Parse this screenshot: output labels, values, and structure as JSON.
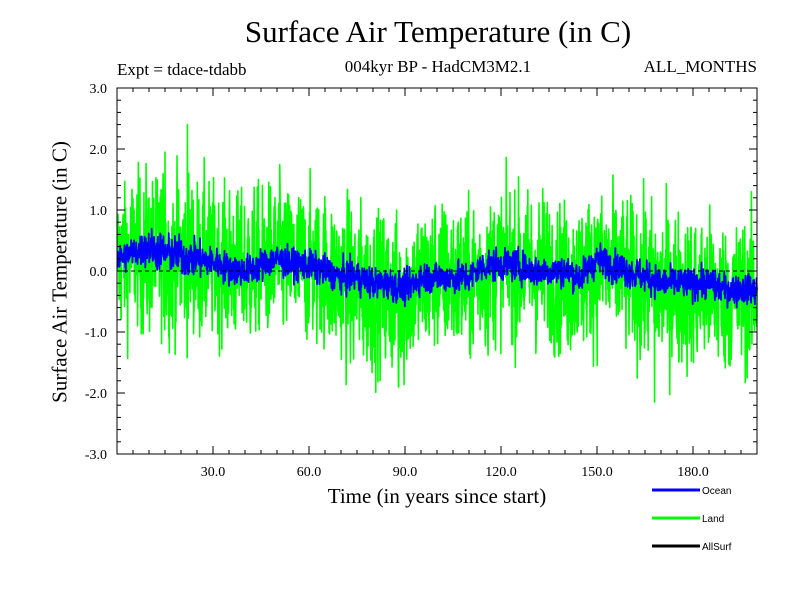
{
  "chart_data": {
    "type": "line",
    "title": "Surface Air Temperature (in C)",
    "subtitle": "004kyr BP - HadCM3M2.1",
    "expt_label": "Expt = tdace-tdabb",
    "period_label": "ALL_MONTHS",
    "xlabel": "Time (in years since start)",
    "ylabel": "Surface Air Temperature (in C)",
    "xlim": [
      0,
      200
    ],
    "ylim": [
      -3.0,
      3.0
    ],
    "x_ticks": [
      30,
      60,
      90,
      120,
      150,
      180
    ],
    "x_tick_labels": [
      "30.0",
      "60.0",
      "90.0",
      "120.0",
      "150.0",
      "180.0"
    ],
    "y_ticks": [
      3.0,
      2.0,
      1.0,
      0.0,
      -1.0,
      -2.0,
      -3.0
    ],
    "y_tick_labels": [
      "3.0",
      "2.0",
      "1.0",
      "0.0",
      "-1.0",
      "-2.0",
      "-3.0"
    ],
    "zero_line": true,
    "series": [
      {
        "name": "Land",
        "color": "#00ff00",
        "x": [
          0,
          5,
          10,
          15,
          20,
          25,
          30,
          35,
          40,
          45,
          50,
          55,
          60,
          65,
          70,
          75,
          80,
          85,
          90,
          95,
          100,
          105,
          110,
          115,
          120,
          125,
          130,
          135,
          140,
          145,
          150,
          155,
          160,
          165,
          170,
          175,
          180,
          185,
          190,
          195,
          200
        ],
        "mean": [
          0.2,
          0.3,
          0.3,
          0.25,
          0.2,
          0.2,
          0.15,
          0.1,
          0.05,
          0.1,
          0.2,
          0.1,
          0.1,
          0.0,
          -0.2,
          -0.3,
          -0.3,
          -0.4,
          -0.4,
          -0.2,
          -0.1,
          -0.1,
          -0.2,
          0.0,
          0.1,
          0.1,
          0.0,
          0.0,
          -0.1,
          -0.1,
          0.1,
          0.0,
          -0.1,
          -0.2,
          -0.3,
          -0.3,
          -0.4,
          -0.3,
          -0.4,
          -0.4,
          -0.4
        ],
        "spread": [
          1.2,
          1.2,
          1.3,
          1.3,
          1.3,
          1.3,
          1.2,
          1.2,
          1.2,
          1.2,
          1.2,
          1.2,
          1.2,
          1.2,
          1.3,
          1.3,
          1.3,
          1.3,
          1.3,
          1.2,
          1.2,
          1.2,
          1.2,
          1.2,
          1.2,
          1.2,
          1.2,
          1.2,
          1.2,
          1.2,
          1.2,
          1.2,
          1.2,
          1.3,
          1.3,
          1.2,
          1.2,
          1.2,
          1.2,
          1.2,
          1.2
        ],
        "peaks": [
          {
            "x": 22,
            "y": 2.4
          },
          {
            "x": 15,
            "y": 1.95
          },
          {
            "x": 168,
            "y": -2.15
          },
          {
            "x": 88,
            "y": -1.9
          }
        ]
      },
      {
        "name": "Ocean",
        "color": "#0000ff",
        "x": [
          0,
          5,
          10,
          15,
          20,
          25,
          30,
          35,
          40,
          45,
          50,
          55,
          60,
          65,
          70,
          75,
          80,
          85,
          90,
          95,
          100,
          105,
          110,
          115,
          120,
          125,
          130,
          135,
          140,
          145,
          150,
          155,
          160,
          165,
          170,
          175,
          180,
          185,
          190,
          195,
          200
        ],
        "mean": [
          0.2,
          0.3,
          0.4,
          0.3,
          0.25,
          0.2,
          0.15,
          0.05,
          0.0,
          0.1,
          0.2,
          0.1,
          0.1,
          0.0,
          -0.1,
          -0.1,
          -0.2,
          -0.2,
          -0.3,
          -0.1,
          -0.1,
          -0.1,
          -0.1,
          0.1,
          0.1,
          0.1,
          0.0,
          0.0,
          0.0,
          -0.1,
          0.2,
          0.1,
          0.0,
          -0.1,
          -0.2,
          -0.2,
          -0.2,
          -0.2,
          -0.3,
          -0.3,
          -0.3
        ],
        "spread": [
          0.25,
          0.25,
          0.3,
          0.3,
          0.3,
          0.3,
          0.25,
          0.25,
          0.25,
          0.25,
          0.25,
          0.25,
          0.25,
          0.25,
          0.25,
          0.25,
          0.25,
          0.25,
          0.25,
          0.25,
          0.25,
          0.25,
          0.25,
          0.25,
          0.25,
          0.25,
          0.25,
          0.25,
          0.25,
          0.25,
          0.25,
          0.25,
          0.25,
          0.25,
          0.25,
          0.25,
          0.25,
          0.25,
          0.25,
          0.25,
          0.25
        ],
        "peaks": []
      }
    ],
    "legend": [
      {
        "name": "Ocean",
        "color": "#0000ff"
      },
      {
        "name": "Land",
        "color": "#00ff00"
      },
      {
        "name": "AllSurf",
        "color": "#000000"
      }
    ]
  }
}
